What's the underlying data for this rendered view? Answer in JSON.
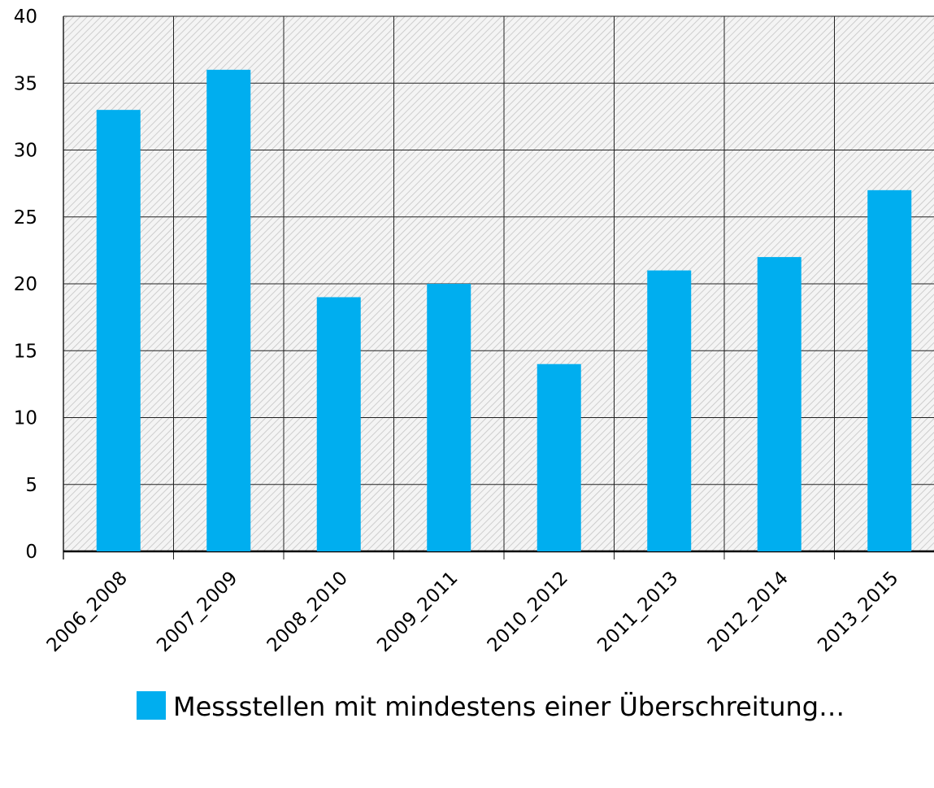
{
  "chart_data": {
    "type": "bar",
    "categories": [
      "2006_2008",
      "2007_2009",
      "2008_2010",
      "2009_2011",
      "2010_2012",
      "2011_2013",
      "2012_2014",
      "2013_2015"
    ],
    "series": [
      {
        "name": "Messstellen mit mindestens einer Überschreitung…",
        "color": "#00aeef",
        "values": [
          33,
          36,
          19,
          20,
          14,
          21,
          22,
          27
        ]
      }
    ],
    "ylim": [
      0,
      40
    ],
    "yticks": [
      0,
      5,
      10,
      15,
      20,
      25,
      30,
      35,
      40
    ],
    "grid": true,
    "legend": "bottom"
  }
}
